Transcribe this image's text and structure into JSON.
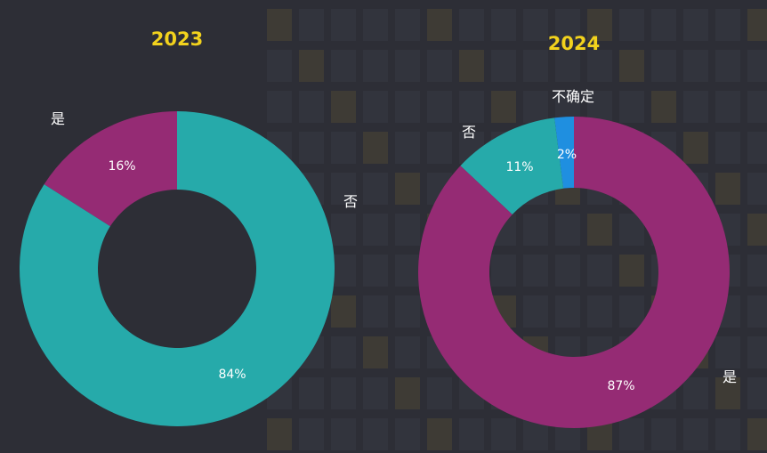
{
  "chart_data": [
    {
      "type": "pie",
      "title": "2023",
      "slices": [
        {
          "label": "否",
          "value": 84,
          "percent_label": "84%",
          "color": "#26aaaa"
        },
        {
          "label": "是",
          "value": 16,
          "percent_label": "16%",
          "color": "#952b74"
        }
      ]
    },
    {
      "type": "pie",
      "title": "2024",
      "slices": [
        {
          "label": "是",
          "value": 87,
          "percent_label": "87%",
          "color": "#952b74"
        },
        {
          "label": "否",
          "value": 11,
          "percent_label": "11%",
          "color": "#26aaaa"
        },
        {
          "label": "不确定",
          "value": 2,
          "percent_label": "2%",
          "color": "#1f8fe0"
        }
      ]
    }
  ]
}
